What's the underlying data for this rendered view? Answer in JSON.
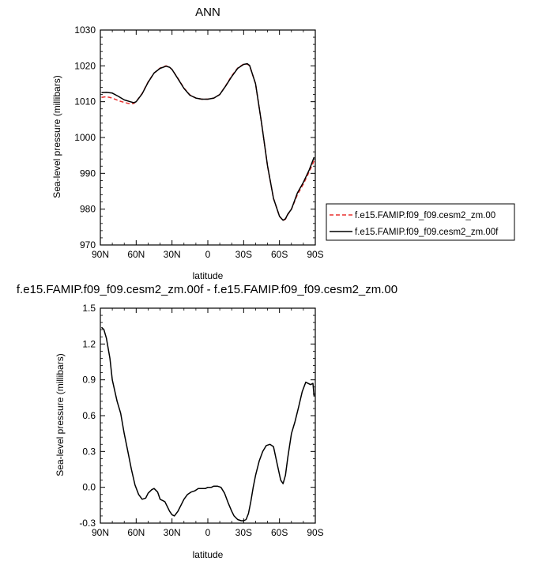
{
  "chart_data": [
    {
      "type": "line",
      "title": "ANN",
      "xlabel": "latitude",
      "ylabel": "Sea-level pressure (millibars)",
      "xlim": [
        90,
        -90
      ],
      "ylim": [
        970,
        1030
      ],
      "xticks": [
        90,
        60,
        30,
        0,
        -30,
        -60,
        -90
      ],
      "xtick_labels": [
        "90N",
        "60N",
        "30N",
        "0",
        "30S",
        "60S",
        "90S"
      ],
      "yticks": [
        970,
        980,
        990,
        1000,
        1010,
        1020,
        1030
      ],
      "ytick_labels": [
        "970",
        "980",
        "990",
        "1000",
        "1010",
        "1020",
        "1030"
      ],
      "legend": "right",
      "series": [
        {
          "name": "f.e15.FAMIP.f09_f09.cesm2_zm.00",
          "color": "#e8312f",
          "dash": "dashed",
          "x": [
            89,
            85,
            80,
            75,
            70,
            65,
            62,
            60,
            55,
            50,
            45,
            40,
            35,
            32,
            30,
            25,
            20,
            15,
            10,
            5,
            0,
            -5,
            -10,
            -15,
            -20,
            -25,
            -30,
            -33,
            -35,
            -40,
            -45,
            -50,
            -55,
            -60,
            -63,
            -65,
            -67,
            -70,
            -75,
            -80,
            -85,
            -89
          ],
          "y": [
            1011.2,
            1011.4,
            1011.0,
            1010.3,
            1009.8,
            1009.4,
            1009.5,
            1010.0,
            1012.3,
            1015.5,
            1018.0,
            1019.4,
            1020.0,
            1019.6,
            1019.0,
            1016.5,
            1013.8,
            1011.9,
            1011.0,
            1010.7,
            1010.7,
            1011.0,
            1012.0,
            1014.5,
            1017.2,
            1019.4,
            1020.5,
            1020.5,
            1020.0,
            1015.0,
            1004.0,
            992.0,
            983.0,
            978.0,
            976.8,
            977.2,
            978.5,
            980.0,
            984.0,
            987.0,
            990.5,
            993.5
          ]
        },
        {
          "name": "f.e15.FAMIP.f09_f09.cesm2_zm.00f",
          "color": "#000000",
          "dash": "solid",
          "x": [
            89,
            85,
            80,
            75,
            70,
            65,
            62,
            60,
            55,
            50,
            45,
            40,
            35,
            32,
            30,
            25,
            20,
            15,
            10,
            5,
            0,
            -5,
            -10,
            -15,
            -20,
            -25,
            -30,
            -33,
            -35,
            -40,
            -45,
            -50,
            -55,
            -60,
            -63,
            -65,
            -67,
            -70,
            -75,
            -80,
            -85,
            -89
          ],
          "y": [
            1012.5,
            1012.6,
            1012.4,
            1011.5,
            1010.5,
            1010.0,
            1009.7,
            1010.0,
            1012.2,
            1015.4,
            1018.0,
            1019.3,
            1019.9,
            1019.6,
            1019.0,
            1016.4,
            1013.7,
            1011.8,
            1011.0,
            1010.7,
            1010.7,
            1011.0,
            1012.0,
            1014.4,
            1017.0,
            1019.3,
            1020.4,
            1020.6,
            1020.1,
            1015.0,
            1004.0,
            992.0,
            983.0,
            978.0,
            976.9,
            977.3,
            978.6,
            980.0,
            984.5,
            987.5,
            991.0,
            994.5
          ]
        }
      ]
    },
    {
      "type": "line",
      "title": "f.e15.FAMIP.f09_f09.cesm2_zm.00f - f.e15.FAMIP.f09_f09.cesm2_zm.00",
      "xlabel": "latitude",
      "ylabel": "Sea-level pressure (millibars)",
      "xlim": [
        90,
        -90
      ],
      "ylim": [
        -0.3,
        1.5
      ],
      "xticks": [
        90,
        60,
        30,
        0,
        -30,
        -60,
        -90
      ],
      "xtick_labels": [
        "90N",
        "60N",
        "30N",
        "0",
        "30S",
        "60S",
        "90S"
      ],
      "yticks": [
        -0.3,
        0.0,
        0.3,
        0.6,
        0.9,
        1.2,
        1.5
      ],
      "ytick_labels": [
        "-0.3",
        "0.0",
        "0.3",
        "0.6",
        "0.9",
        "1.2",
        "1.5"
      ],
      "series": [
        {
          "color": "#000000",
          "dash": "solid",
          "x": [
            89,
            87,
            85,
            82,
            80,
            76,
            73,
            70,
            67,
            64,
            61,
            58,
            55,
            52,
            50,
            47,
            45,
            42,
            40,
            38,
            36,
            34,
            32,
            30,
            28,
            25,
            22,
            20,
            17,
            14,
            11,
            8,
            5,
            2,
            0,
            -3,
            -5,
            -8,
            -11,
            -14,
            -17,
            -20,
            -22,
            -25,
            -28,
            -30,
            -32,
            -34,
            -36,
            -38,
            -40,
            -43,
            -46,
            -49,
            -52,
            -55,
            -58,
            -61,
            -63,
            -65,
            -67,
            -70,
            -73,
            -76,
            -79,
            -82,
            -84,
            -86,
            -88,
            -89
          ],
          "y": [
            1.34,
            1.32,
            1.25,
            1.08,
            0.9,
            0.72,
            0.62,
            0.45,
            0.3,
            0.15,
            0.02,
            -0.06,
            -0.1,
            -0.09,
            -0.05,
            -0.02,
            -0.01,
            -0.04,
            -0.1,
            -0.11,
            -0.12,
            -0.16,
            -0.2,
            -0.23,
            -0.24,
            -0.2,
            -0.14,
            -0.1,
            -0.06,
            -0.04,
            -0.03,
            -0.01,
            -0.01,
            -0.01,
            0.0,
            0.0,
            0.01,
            0.01,
            0.0,
            -0.05,
            -0.13,
            -0.2,
            -0.24,
            -0.27,
            -0.28,
            -0.28,
            -0.27,
            -0.22,
            -0.12,
            0.0,
            0.1,
            0.22,
            0.3,
            0.35,
            0.36,
            0.34,
            0.2,
            0.06,
            0.03,
            0.1,
            0.25,
            0.45,
            0.55,
            0.67,
            0.8,
            0.88,
            0.87,
            0.86,
            0.87,
            0.76
          ]
        }
      ]
    }
  ]
}
